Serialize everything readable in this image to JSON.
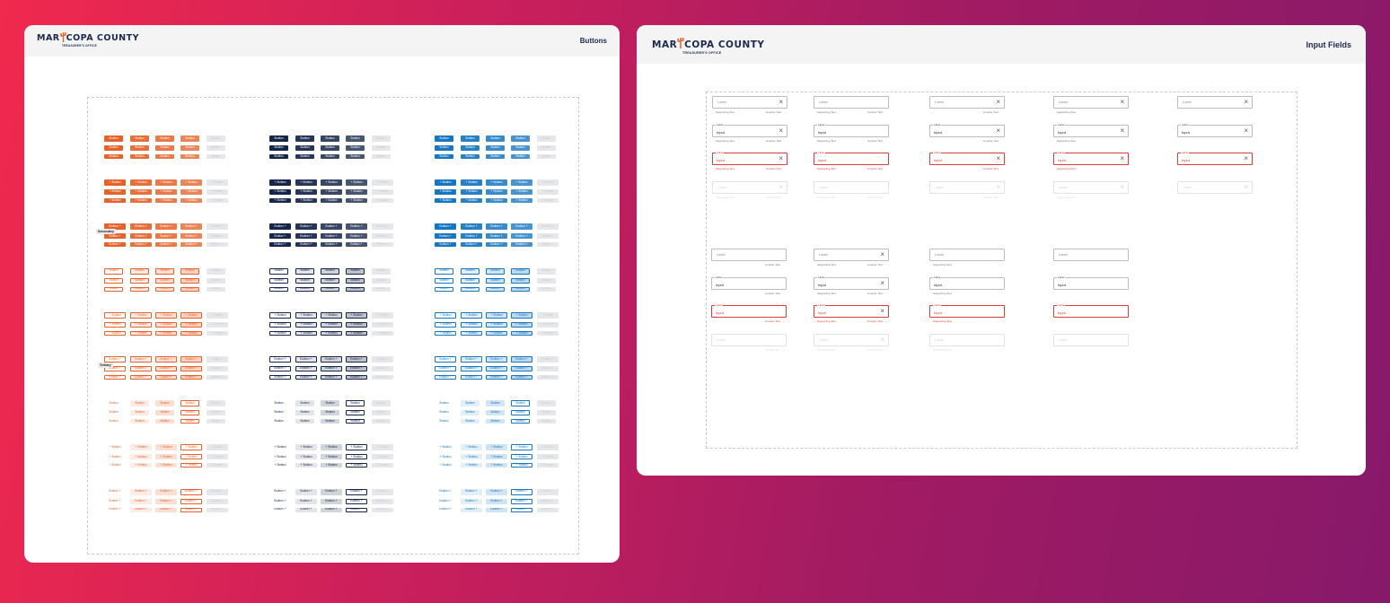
{
  "cards": {
    "buttons": {
      "logo": {
        "main_a": "MAR",
        "main_b": "COPA COUNTY",
        "sub": "TREASURER'S OFFICE"
      },
      "title": "Buttons",
      "button_label": "Button",
      "tags": {
        "secondary": "Secondary",
        "tertiary": "Tertiary"
      }
    },
    "inputs": {
      "logo": {
        "main_a": "MAR",
        "main_b": "COPA COUNTY",
        "sub": "TREASURER'S OFFICE"
      },
      "title": "Input Fields",
      "field": {
        "label": "Label",
        "input": "Input",
        "supporting": "Supporting Text",
        "counter": "Counter Text"
      }
    }
  },
  "colors": {
    "orange": "#e5632a",
    "navy": "#15264a",
    "blue": "#1676c0",
    "error": "#e03a3a",
    "brand_text": "#1b2a4e"
  }
}
